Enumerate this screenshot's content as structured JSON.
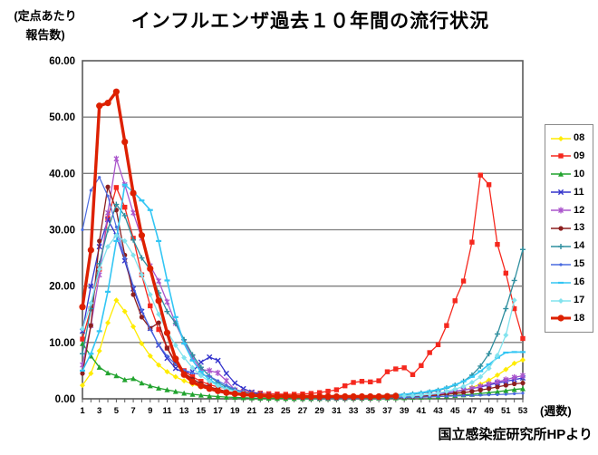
{
  "header": {
    "title": "インフルエンザ過去１０年間の流行状況",
    "y_axis_unit": [
      "(定点あたり",
      "報告数)"
    ],
    "x_axis_unit": "(週数)",
    "source": "国立感染症研究所HPより"
  },
  "chart_data": {
    "type": "line",
    "title": "インフルエンザ過去１０年間の流行状況",
    "xlabel": "(週数)",
    "ylabel": "(定点あたり報告数)",
    "xlim": [
      1,
      53
    ],
    "ylim": [
      0,
      60
    ],
    "grid": "horizontal",
    "grid_color": "#7f7f7f",
    "axis_color": "#595959",
    "legend_position": "right",
    "y_tick_labels": [
      "0.00",
      "10.00",
      "20.00",
      "30.00",
      "40.00",
      "50.00",
      "60.00"
    ],
    "y_tick_values": [
      0,
      10,
      20,
      30,
      40,
      50,
      60
    ],
    "x_tick_labels": [
      "1",
      "3",
      "5",
      "7",
      "9",
      "11",
      "13",
      "15",
      "17",
      "19",
      "21",
      "23",
      "25",
      "27",
      "29",
      "31",
      "33",
      "35",
      "37",
      "39",
      "41",
      "43",
      "45",
      "47",
      "49",
      "51",
      "53"
    ],
    "weeks": 53,
    "series": [
      {
        "name": "08",
        "color": "#ffec00",
        "marker": "diamond",
        "width": 1.3,
        "values": [
          2.4,
          4.5,
          8.5,
          13.5,
          17.5,
          15.5,
          12.8,
          9.8,
          7.6,
          6.0,
          4.8,
          3.9,
          3.2,
          2.6,
          2.1,
          1.7,
          1.4,
          1.1,
          0.9,
          0.7,
          0.5,
          0.4,
          0.35,
          0.3,
          0.25,
          0.2,
          0.2,
          0.15,
          0.15,
          0.1,
          0.1,
          0.1,
          0.1,
          0.1,
          0.15,
          0.15,
          0.2,
          0.2,
          0.25,
          0.3,
          0.4,
          0.5,
          0.65,
          0.85,
          1.1,
          1.5,
          2.0,
          2.6,
          3.3,
          4.2,
          5.2,
          6.3,
          6.9
        ]
      },
      {
        "name": "09",
        "color": "#f5281e",
        "marker": "square",
        "width": 1.3,
        "values": [
          10.6,
          16.0,
          23.0,
          32.0,
          37.5,
          34.0,
          28.5,
          22.0,
          16.5,
          12.3,
          9.0,
          6.6,
          5.0,
          3.9,
          3.1,
          2.5,
          2.1,
          1.8,
          1.5,
          1.3,
          1.1,
          1.0,
          0.9,
          0.85,
          0.8,
          0.8,
          0.85,
          0.95,
          1.1,
          1.35,
          1.6,
          2.3,
          2.9,
          3.1,
          3.0,
          3.2,
          4.8,
          5.3,
          5.5,
          4.3,
          5.9,
          8.2,
          9.6,
          13.0,
          17.4,
          20.9,
          27.8,
          39.7,
          38.0,
          27.4,
          22.3,
          16.0,
          10.7
        ]
      },
      {
        "name": "10",
        "color": "#21a32e",
        "marker": "triangle",
        "width": 1.3,
        "values": [
          9.8,
          7.6,
          5.6,
          4.6,
          4.1,
          3.4,
          3.6,
          2.8,
          2.3,
          1.9,
          1.6,
          1.3,
          1.0,
          0.8,
          0.65,
          0.5,
          0.4,
          0.3,
          0.25,
          0.2,
          0.15,
          0.12,
          0.1,
          0.08,
          0.07,
          0.06,
          0.05,
          0.05,
          0.05,
          0.06,
          0.07,
          0.08,
          0.09,
          0.1,
          0.12,
          0.14,
          0.16,
          0.18,
          0.2,
          0.25,
          0.3,
          0.35,
          0.4,
          0.5,
          0.6,
          0.7,
          0.8,
          0.95,
          1.1,
          1.25,
          1.45,
          1.65,
          1.8
        ]
      },
      {
        "name": "11",
        "color": "#3333cc",
        "marker": "x",
        "width": 1.3,
        "values": [
          12.0,
          20.0,
          27.0,
          31.8,
          29.0,
          24.5,
          19.5,
          15.5,
          12.5,
          9.5,
          7.2,
          5.4,
          4.6,
          4.8,
          6.5,
          7.4,
          6.8,
          4.5,
          2.8,
          1.8,
          1.2,
          0.8,
          0.6,
          0.5,
          0.4,
          0.35,
          0.3,
          0.25,
          0.2,
          0.2,
          0.2,
          0.2,
          0.25,
          0.25,
          0.3,
          0.3,
          0.35,
          0.4,
          0.45,
          0.55,
          0.65,
          0.8,
          0.95,
          1.1,
          1.3,
          1.55,
          1.8,
          2.1,
          2.45,
          2.8,
          3.1,
          3.4,
          3.7
        ]
      },
      {
        "name": "12",
        "color": "#aa55cc",
        "marker": "star",
        "width": 1.3,
        "values": [
          6.0,
          13.0,
          22.0,
          33.0,
          42.6,
          38.0,
          33.0,
          28.5,
          23.6,
          20.9,
          17.2,
          13.4,
          10.1,
          7.3,
          5.2,
          5.0,
          4.6,
          3.2,
          1.6,
          1.2,
          0.9,
          0.7,
          0.6,
          0.5,
          0.4,
          0.35,
          0.3,
          0.3,
          0.25,
          0.25,
          0.2,
          0.2,
          0.25,
          0.25,
          0.3,
          0.3,
          0.35,
          0.4,
          0.45,
          0.5,
          0.6,
          0.7,
          0.85,
          1.0,
          1.2,
          1.5,
          1.8,
          2.2,
          2.6,
          3.0,
          3.4,
          3.8,
          4.1
        ]
      },
      {
        "name": "13",
        "color": "#8c1f1f",
        "marker": "circle",
        "width": 1.3,
        "values": [
          4.5,
          13.0,
          28.0,
          37.6,
          33.5,
          25.5,
          18.5,
          14.5,
          12.5,
          13.5,
          9.0,
          6.2,
          4.6,
          3.5,
          2.7,
          2.1,
          1.7,
          1.3,
          1.0,
          0.8,
          0.6,
          0.5,
          0.4,
          0.35,
          0.3,
          0.25,
          0.2,
          0.2,
          0.15,
          0.15,
          0.15,
          0.15,
          0.15,
          0.2,
          0.2,
          0.25,
          0.25,
          0.3,
          0.35,
          0.4,
          0.45,
          0.55,
          0.65,
          0.8,
          0.95,
          1.1,
          1.3,
          1.55,
          1.8,
          2.1,
          2.4,
          2.65,
          2.8
        ]
      },
      {
        "name": "14",
        "color": "#2f8f9f",
        "marker": "plus",
        "width": 1.3,
        "values": [
          8.0,
          16.0,
          24.0,
          30.0,
          34.5,
          32.5,
          28.2,
          25.0,
          22.9,
          18.8,
          15.5,
          13.4,
          10.5,
          7.8,
          5.6,
          4.0,
          2.9,
          2.1,
          1.6,
          1.2,
          0.9,
          0.7,
          0.55,
          0.45,
          0.4,
          0.35,
          0.3,
          0.3,
          0.25,
          0.25,
          0.25,
          0.3,
          0.3,
          0.35,
          0.4,
          0.45,
          0.5,
          0.6,
          0.7,
          0.85,
          1.0,
          1.2,
          1.5,
          1.9,
          2.4,
          3.1,
          4.2,
          5.8,
          8.0,
          11.5,
          16.0,
          21.0,
          26.5
        ]
      },
      {
        "name": "15",
        "color": "#4a6be0",
        "marker": "dot",
        "width": 1.2,
        "values": [
          30.0,
          37.0,
          39.3,
          36.0,
          30.5,
          25.0,
          20.0,
          15.8,
          12.3,
          9.6,
          7.6,
          6.1,
          5.1,
          4.6,
          4.3,
          4.0,
          3.2,
          2.4,
          1.7,
          1.2,
          0.8,
          0.6,
          0.45,
          0.35,
          0.3,
          0.25,
          0.2,
          0.2,
          0.15,
          0.15,
          0.15,
          0.15,
          0.15,
          0.15,
          0.2,
          0.2,
          0.2,
          0.25,
          0.25,
          0.3,
          0.3,
          0.35,
          0.4,
          0.45,
          0.5,
          0.55,
          0.6,
          0.65,
          0.7,
          0.75,
          0.8,
          0.9,
          1.0
        ]
      },
      {
        "name": "16",
        "color": "#33c6f4",
        "marker": "dash",
        "width": 1.6,
        "values": [
          5.0,
          8.0,
          12.0,
          19.0,
          28.0,
          38.0,
          36.7,
          35.2,
          33.5,
          28.0,
          21.0,
          14.5,
          9.8,
          6.8,
          4.8,
          3.4,
          2.5,
          1.8,
          1.4,
          1.0,
          0.8,
          0.6,
          0.5,
          0.4,
          0.35,
          0.3,
          0.3,
          0.25,
          0.25,
          0.25,
          0.3,
          0.3,
          0.35,
          0.4,
          0.45,
          0.5,
          0.6,
          0.7,
          0.8,
          0.95,
          1.1,
          1.35,
          1.6,
          2.0,
          2.5,
          3.1,
          3.9,
          4.9,
          6.1,
          7.3,
          8.2,
          8.3,
          8.3
        ]
      },
      {
        "name": "17",
        "color": "#82e3ee",
        "marker": "diamond",
        "width": 1.3,
        "values": [
          12.4,
          17.0,
          23.0,
          27.0,
          29.0,
          28.0,
          25.5,
          22.0,
          18.5,
          15.0,
          12.0,
          9.5,
          7.3,
          5.5,
          4.1,
          3.1,
          2.3,
          1.7,
          1.3,
          1.0,
          0.8,
          0.6,
          0.5,
          0.4,
          0.35,
          0.3,
          0.3,
          0.25,
          0.25,
          0.25,
          0.3,
          0.3,
          0.3,
          0.35,
          0.35,
          0.4,
          0.4,
          0.45,
          0.5,
          0.55,
          0.65,
          0.8,
          1.0,
          1.3,
          1.7,
          2.2,
          2.9,
          3.9,
          5.4,
          7.7,
          11.3,
          17.5,
          null
        ]
      },
      {
        "name": "18",
        "color": "#dd2000",
        "marker": "bigcircle",
        "width": 3.4,
        "values": [
          16.3,
          26.4,
          52.0,
          52.5,
          54.5,
          45.6,
          36.5,
          29.0,
          23.1,
          17.4,
          11.7,
          7.1,
          4.3,
          3.0,
          2.3,
          1.8,
          1.4,
          1.1,
          0.9,
          0.75,
          0.65,
          0.55,
          0.5,
          0.45,
          0.45,
          0.4,
          0.4,
          0.4,
          0.4,
          0.4,
          0.4,
          0.4,
          0.4,
          0.4,
          0.4,
          0.4,
          0.45,
          0.5,
          null,
          null,
          null,
          null,
          null,
          null,
          null,
          null,
          null,
          null,
          null,
          null,
          null,
          null,
          null
        ]
      }
    ]
  }
}
